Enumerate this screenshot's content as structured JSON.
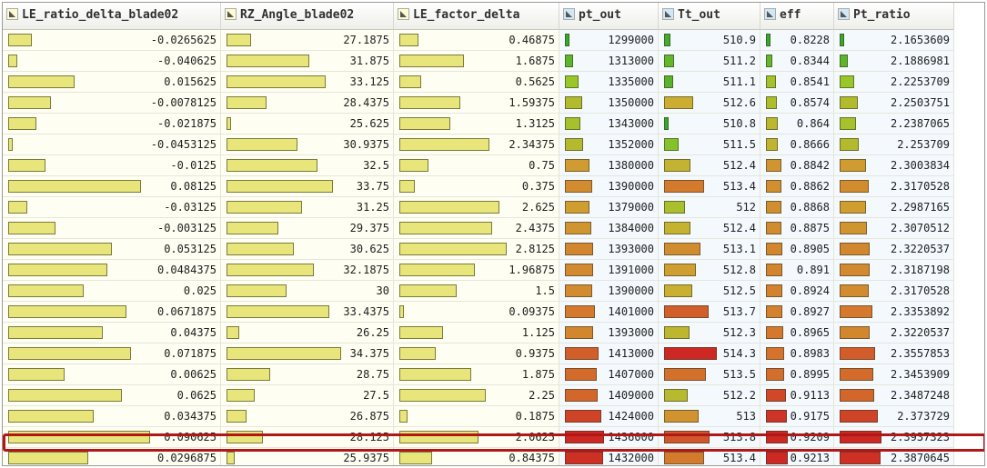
{
  "colors": {
    "yellow_bar": "#e8e67a",
    "highlight": "#b01818"
  },
  "columns": [
    {
      "key": "le_ratio",
      "label": "LE_ratio_delta_blade02",
      "min": -0.0453125,
      "max": 0.090625
    },
    {
      "key": "rz_angle",
      "label": "RZ_Angle_blade02",
      "min": 25.625,
      "max": 34.375
    },
    {
      "key": "le_factor",
      "label": "LE_factor_delta",
      "min": 0.09375,
      "max": 2.8125
    },
    {
      "key": "pt_out",
      "label": "pt_out",
      "min": 1299000,
      "max": 1436000
    },
    {
      "key": "tt_out",
      "label": "Tt_out",
      "min": 510.8,
      "max": 514.3
    },
    {
      "key": "eff",
      "label": "eff",
      "min": 0.8228,
      "max": 0.9213
    },
    {
      "key": "pt_ratio",
      "label": "Pt_ratio",
      "min": 2.1653609,
      "max": 2.3937323
    }
  ],
  "rows": [
    [
      "-0.0265625",
      "27.1875",
      "0.46875",
      "1299000",
      "510.9",
      "0.8228",
      "2.1653609"
    ],
    [
      "-0.040625",
      "31.875",
      "1.6875",
      "1313000",
      "511.2",
      "0.8344",
      "2.1886981"
    ],
    [
      "0.015625",
      "33.125",
      "0.5625",
      "1335000",
      "511.1",
      "0.8541",
      "2.2253709"
    ],
    [
      "-0.0078125",
      "28.4375",
      "1.59375",
      "1350000",
      "512.6",
      "0.8574",
      "2.2503751"
    ],
    [
      "-0.021875",
      "25.625",
      "1.3125",
      "1343000",
      "510.8",
      "0.864",
      "2.2387065"
    ],
    [
      "-0.0453125",
      "30.9375",
      "2.34375",
      "1352000",
      "511.5",
      "0.8666",
      "2.253709"
    ],
    [
      "-0.0125",
      "32.5",
      "0.75",
      "1380000",
      "512.4",
      "0.8842",
      "2.3003834"
    ],
    [
      "0.08125",
      "33.75",
      "0.375",
      "1390000",
      "513.4",
      "0.8862",
      "2.3170528"
    ],
    [
      "-0.03125",
      "31.25",
      "2.625",
      "1379000",
      "512",
      "0.8868",
      "2.2987165"
    ],
    [
      "-0.003125",
      "29.375",
      "2.4375",
      "1384000",
      "512.4",
      "0.8875",
      "2.3070512"
    ],
    [
      "0.053125",
      "30.625",
      "2.8125",
      "1393000",
      "513.1",
      "0.8905",
      "2.3220537"
    ],
    [
      "0.0484375",
      "32.1875",
      "1.96875",
      "1391000",
      "512.8",
      "0.891",
      "2.3187198"
    ],
    [
      "0.025",
      "30",
      "1.5",
      "1390000",
      "512.5",
      "0.8924",
      "2.3170528"
    ],
    [
      "0.0671875",
      "33.4375",
      "0.09375",
      "1401000",
      "513.7",
      "0.8927",
      "2.3353892"
    ],
    [
      "0.04375",
      "26.25",
      "1.125",
      "1393000",
      "512.3",
      "0.8965",
      "2.3220537"
    ],
    [
      "0.071875",
      "34.375",
      "0.9375",
      "1413000",
      "514.3",
      "0.8983",
      "2.3557853"
    ],
    [
      "0.00625",
      "28.75",
      "1.875",
      "1407000",
      "513.5",
      "0.8995",
      "2.3453909"
    ],
    [
      "0.0625",
      "27.5",
      "2.25",
      "1409000",
      "512.2",
      "0.9113",
      "2.3487248"
    ],
    [
      "0.034375",
      "26.875",
      "0.1875",
      "1424000",
      "513",
      "0.9175",
      "2.373729"
    ],
    [
      "0.090625",
      "28.125",
      "2.0625",
      "1436000",
      "513.8",
      "0.9209",
      "2.3937323"
    ],
    [
      "0.0296875",
      "25.9375",
      "0.84375",
      "1432000",
      "513.4",
      "0.9213",
      "2.3870645"
    ]
  ]
}
